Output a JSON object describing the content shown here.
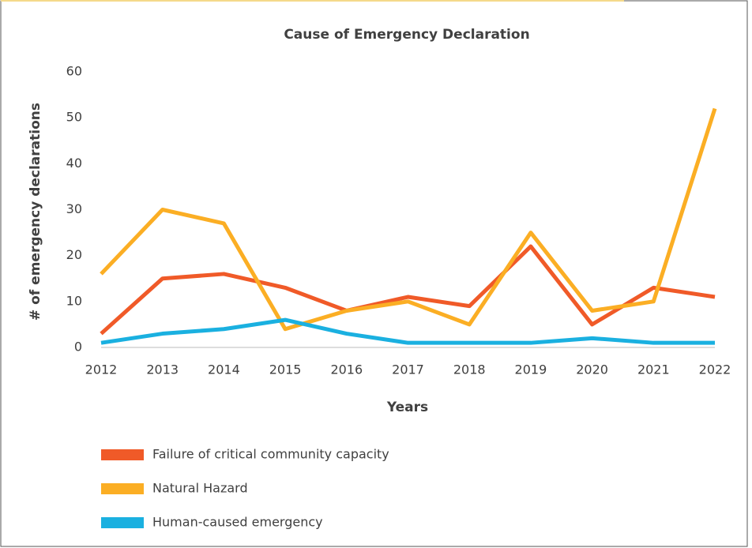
{
  "chart_data": {
    "type": "line",
    "title": "Cause of Emergency Declaration",
    "x_label": "Years",
    "y_label": "# of emergency declarations",
    "categories": [
      "2012",
      "2013",
      "2014",
      "2015",
      "2016",
      "2017",
      "2018",
      "2019",
      "2020",
      "2021",
      "2022"
    ],
    "series": [
      {
        "name": "Failure of critical community capacity",
        "color": "#f05a28",
        "values": [
          3,
          15,
          16,
          13,
          8,
          11,
          9,
          22,
          5,
          13,
          11
        ]
      },
      {
        "name": "Natural Hazard",
        "color": "#fbae24",
        "values": [
          16,
          30,
          27,
          4,
          8,
          10,
          5,
          25,
          8,
          10,
          52
        ]
      },
      {
        "name": "Human-caused emergency",
        "color": "#1ab0e0",
        "values": [
          1,
          3,
          4,
          6,
          3,
          1,
          1,
          1,
          2,
          1,
          1
        ]
      }
    ],
    "ylim": [
      0,
      60
    ],
    "yticks": [
      0,
      10,
      20,
      30,
      40,
      50,
      60
    ],
    "grid": false,
    "legend": "bottom"
  }
}
